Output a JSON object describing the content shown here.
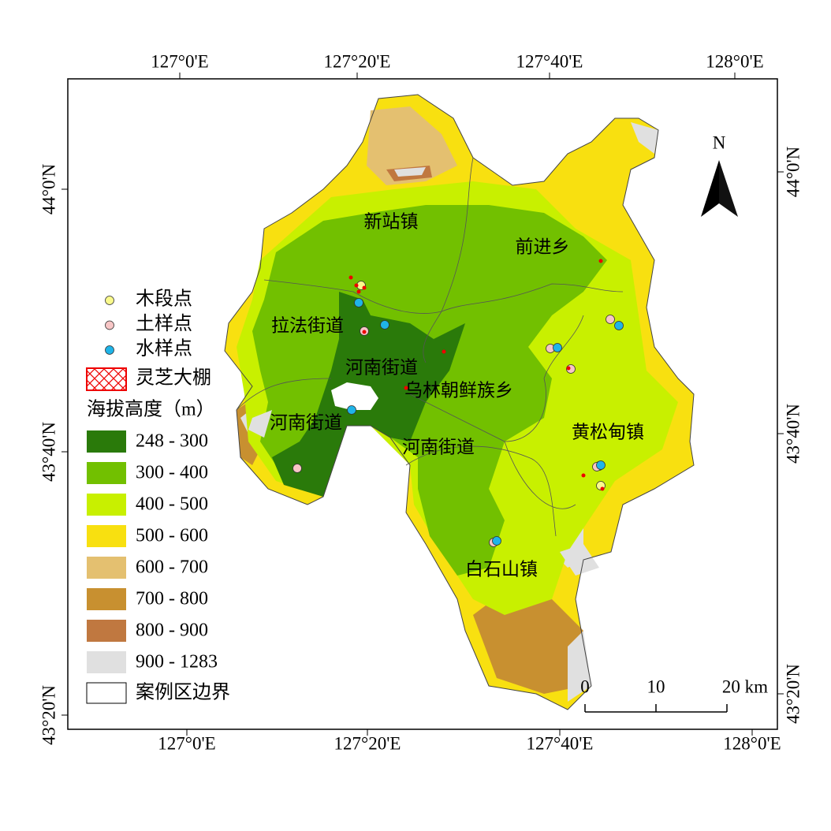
{
  "map": {
    "north": "N",
    "top_ticks": [
      "127°0'E",
      "127°20'E",
      "127°40'E",
      "128°0'E"
    ],
    "bottom_ticks": [
      "127°0'E",
      "127°20'E",
      "127°40'E",
      "128°0'E"
    ],
    "left_ticks": [
      "44°0'N",
      "43°40'N",
      "43°20'N"
    ],
    "right_ticks": [
      "44°0'N",
      "43°40'N",
      "43°20'N"
    ],
    "places": [
      "新站镇",
      "前进乡",
      "拉法街道",
      "河南街道",
      "乌林朝鲜族乡",
      "河南街道",
      "河南街道",
      "黄松甸镇",
      "白石山镇"
    ],
    "legend": {
      "points": [
        {
          "label": "木段点",
          "color": "#fafa8c"
        },
        {
          "label": "土样点",
          "color": "#f7c6c6"
        },
        {
          "label": "水样点",
          "color": "#1fb4e8"
        }
      ],
      "greenhouse": "灵芝大棚",
      "elevation_title": "海拔高度（m）",
      "elevation": [
        {
          "label": "248 - 300",
          "color": "#2a7a0a"
        },
        {
          "label": "300 - 400",
          "color": "#72c000"
        },
        {
          "label": "400 - 500",
          "color": "#c8f000"
        },
        {
          "label": "500 - 600",
          "color": "#f8e010"
        },
        {
          "label": "600 - 700",
          "color": "#e4c070"
        },
        {
          "label": "700 - 800",
          "color": "#c89030"
        },
        {
          "label": "800 - 900",
          "color": "#c07840"
        },
        {
          "label": "900 - 1283",
          "color": "#e0e0e0"
        }
      ],
      "boundary": "案例区边界"
    },
    "scale": [
      "0",
      "10",
      "20 km"
    ]
  }
}
